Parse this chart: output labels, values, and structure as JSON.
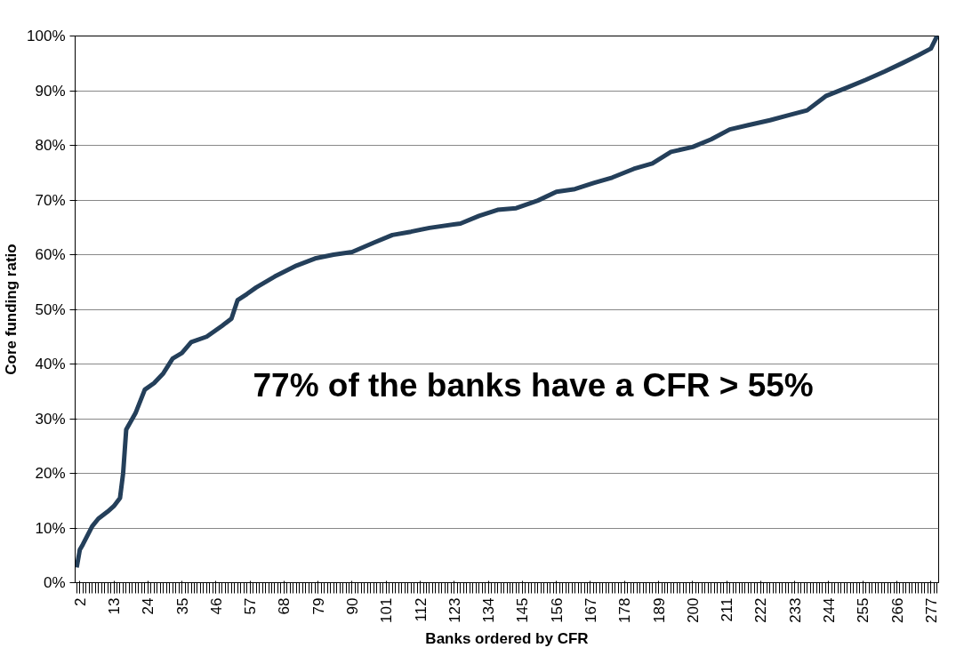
{
  "chart_data": {
    "type": "line",
    "xlabel": "Banks ordered by CFR",
    "ylabel": "Core funding ratio",
    "annotations": [
      "77% of the banks have a CFR > 55%"
    ],
    "x": [
      1,
      2,
      3,
      6,
      8,
      11,
      13,
      15,
      16,
      17,
      20,
      23,
      26,
      29,
      32,
      35,
      38,
      43,
      48,
      51,
      53,
      56,
      59,
      65,
      72,
      78,
      84,
      90,
      97,
      103,
      109,
      115,
      125,
      131,
      137,
      143,
      150,
      156,
      162,
      168,
      174,
      181,
      187,
      193,
      200,
      206,
      212,
      218,
      225,
      231,
      237,
      243,
      250,
      256,
      262,
      268,
      273,
      277,
      279
    ],
    "series": [
      {
        "color": "#243f5a",
        "values": [
          2.8,
          6,
          7,
          10.3,
          11.7,
          13,
          14,
          15.5,
          20,
          28,
          31,
          35.3,
          36.5,
          38.3,
          41,
          42,
          44,
          45,
          47,
          48.3,
          51.7,
          52.8,
          54,
          56,
          58,
          59.3,
          60,
          60.5,
          62.2,
          63.6,
          64.2,
          64.9,
          65.7,
          67.1,
          68.2,
          68.5,
          69.9,
          71.5,
          72,
          73.1,
          74.1,
          75.7,
          76.7,
          78.8,
          79.7,
          81.1,
          82.9,
          83.7,
          84.6,
          85.5,
          86.4,
          89,
          90.6,
          92,
          93.5,
          95.1,
          96.5,
          97.7,
          100
        ]
      }
    ],
    "xlim": [
      0.5,
      279.5
    ],
    "xticks": [
      2,
      13,
      24,
      35,
      46,
      57,
      68,
      79,
      90,
      101,
      112,
      123,
      134,
      145,
      156,
      167,
      178,
      189,
      200,
      211,
      222,
      233,
      244,
      255,
      266,
      277
    ],
    "ylim": [
      0,
      100
    ],
    "yticks": [
      {
        "value": 0,
        "label": "0%"
      },
      {
        "value": 10,
        "label": "10%"
      },
      {
        "value": 20,
        "label": "20%"
      },
      {
        "value": 30,
        "label": "30%"
      },
      {
        "value": 40,
        "label": "40%"
      },
      {
        "value": 50,
        "label": "50%"
      },
      {
        "value": 60,
        "label": "60%"
      },
      {
        "value": 70,
        "label": "70%"
      },
      {
        "value": 80,
        "label": "80%"
      },
      {
        "value": 90,
        "label": "90%"
      },
      {
        "value": 100,
        "label": "100%"
      }
    ],
    "grid": "y",
    "marker": "none",
    "line_style": "solid"
  }
}
